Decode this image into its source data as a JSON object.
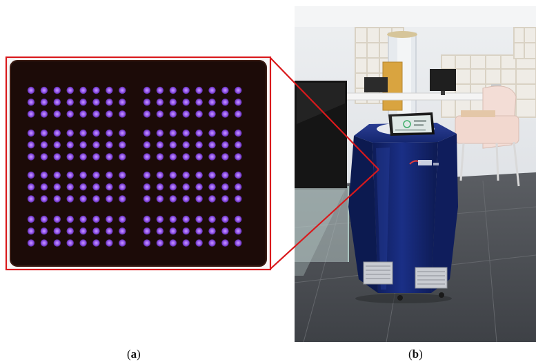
{
  "captions": {
    "panel_a": "a",
    "panel_b": "b"
  },
  "panel_a": {
    "grid_blocks": 8,
    "block_rows": 3,
    "block_cols": 8
  },
  "colors": {
    "plate_background": "#1c0b08",
    "led": "#9a5cf0",
    "callout_frame": "#d9191c",
    "robot_body": "#13246e",
    "floor": "#4a4d52",
    "wall": "#e9ebee"
  }
}
